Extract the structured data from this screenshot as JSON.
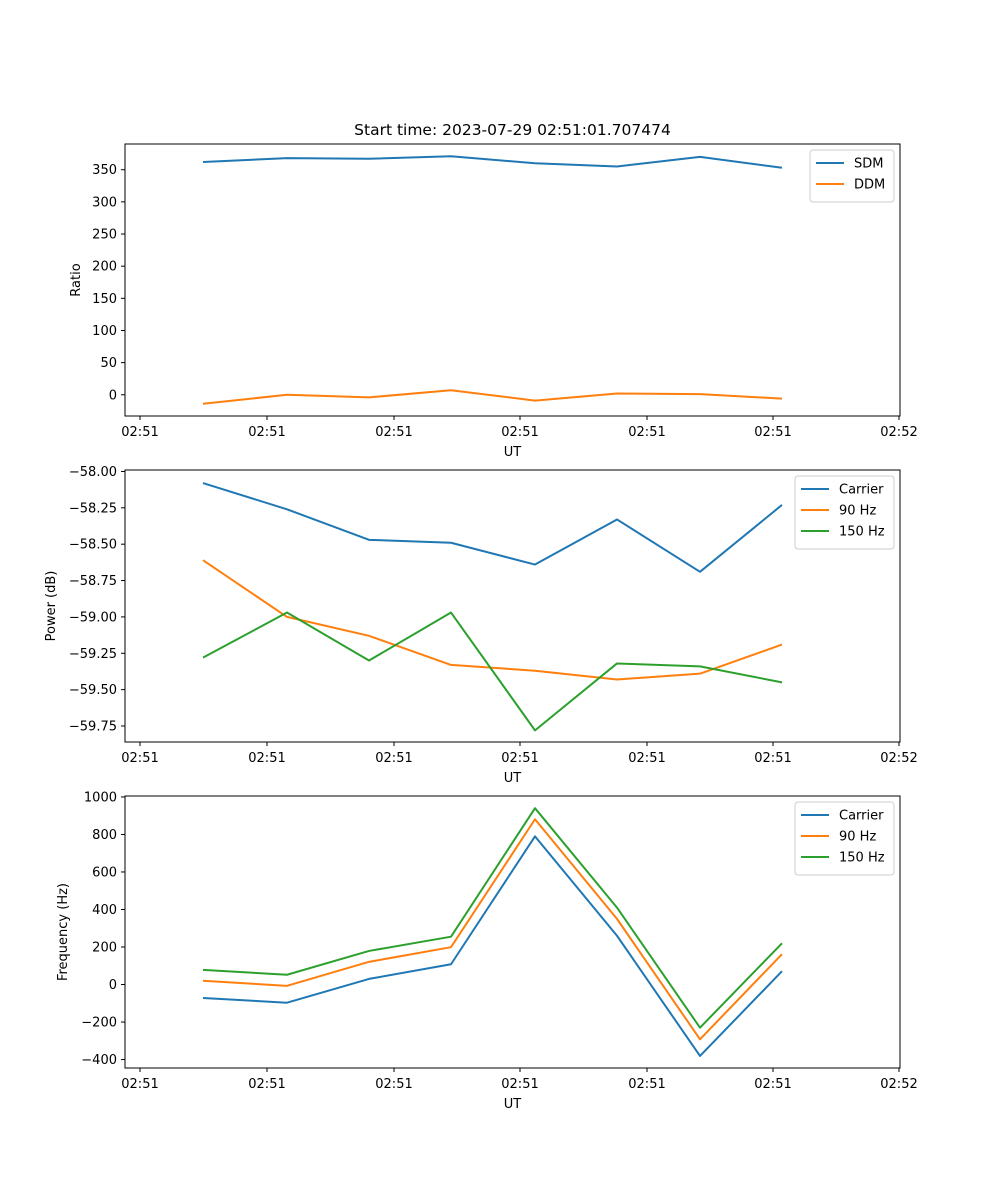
{
  "chart_data": [
    {
      "type": "line",
      "title": "Start time: 2023-07-29 02:51:01.707474",
      "xlabel": "UT",
      "ylabel": "Ratio",
      "xticks": [
        "02:51",
        "02:51",
        "02:51",
        "02:51",
        "02:51",
        "02:51",
        "02:52"
      ],
      "yticks": [
        0,
        50,
        100,
        150,
        200,
        250,
        300,
        350
      ],
      "ylim": [
        -33,
        390
      ],
      "legend_location": "top-right",
      "series": [
        {
          "name": "SDM",
          "color": "#1f77b4",
          "values": [
            362,
            368,
            367,
            371,
            360,
            355,
            370,
            353
          ]
        },
        {
          "name": "DDM",
          "color": "#ff7f0e",
          "values": [
            -14,
            0,
            -4,
            7,
            -9,
            2,
            1,
            -6
          ]
        }
      ]
    },
    {
      "type": "line",
      "title": "",
      "xlabel": "UT",
      "ylabel": "Power (dB)",
      "xticks": [
        "02:51",
        "02:51",
        "02:51",
        "02:51",
        "02:51",
        "02:51",
        "02:52"
      ],
      "yticks": [
        -59.75,
        -59.5,
        -59.25,
        -59.0,
        -58.75,
        -58.5,
        -58.25,
        -58.0
      ],
      "ytick_labels": [
        "−59.75",
        "−59.50",
        "−59.25",
        "−59.00",
        "−58.75",
        "−58.50",
        "−58.25",
        "−58.00"
      ],
      "ylim": [
        -59.86,
        -57.99
      ],
      "legend_location": "top-right",
      "series": [
        {
          "name": "Carrier",
          "color": "#1f77b4",
          "values": [
            -58.08,
            -58.26,
            -58.47,
            -58.49,
            -58.64,
            -58.33,
            -58.69,
            -58.23
          ]
        },
        {
          "name": "90 Hz",
          "color": "#ff7f0e",
          "values": [
            -58.61,
            -59.0,
            -59.13,
            -59.33,
            -59.37,
            -59.43,
            -59.39,
            -59.19
          ]
        },
        {
          "name": "150 Hz",
          "color": "#2ca02c",
          "values": [
            -59.28,
            -58.97,
            -59.3,
            -58.97,
            -59.78,
            -59.32,
            -59.34,
            -59.45
          ]
        }
      ]
    },
    {
      "type": "line",
      "title": "",
      "xlabel": "UT",
      "ylabel": "Frequency (Hz)",
      "xticks": [
        "02:51",
        "02:51",
        "02:51",
        "02:51",
        "02:51",
        "02:51",
        "02:52"
      ],
      "yticks": [
        -400,
        -200,
        0,
        200,
        400,
        600,
        800,
        1000
      ],
      "ytick_labels": [
        "−400",
        "−200",
        "0",
        "200",
        "400",
        "600",
        "800",
        "1000"
      ],
      "ylim": [
        -445,
        1005
      ],
      "legend_location": "top-right",
      "series": [
        {
          "name": "Carrier",
          "color": "#1f77b4",
          "values": [
            -72,
            -97,
            30,
            108,
            790,
            260,
            -381,
            71
          ]
        },
        {
          "name": "90 Hz",
          "color": "#ff7f0e",
          "values": [
            20,
            -7,
            121,
            199,
            881,
            350,
            -292,
            162
          ]
        },
        {
          "name": "150 Hz",
          "color": "#2ca02c",
          "values": [
            78,
            52,
            179,
            255,
            940,
            410,
            -230,
            220
          ]
        }
      ]
    }
  ]
}
